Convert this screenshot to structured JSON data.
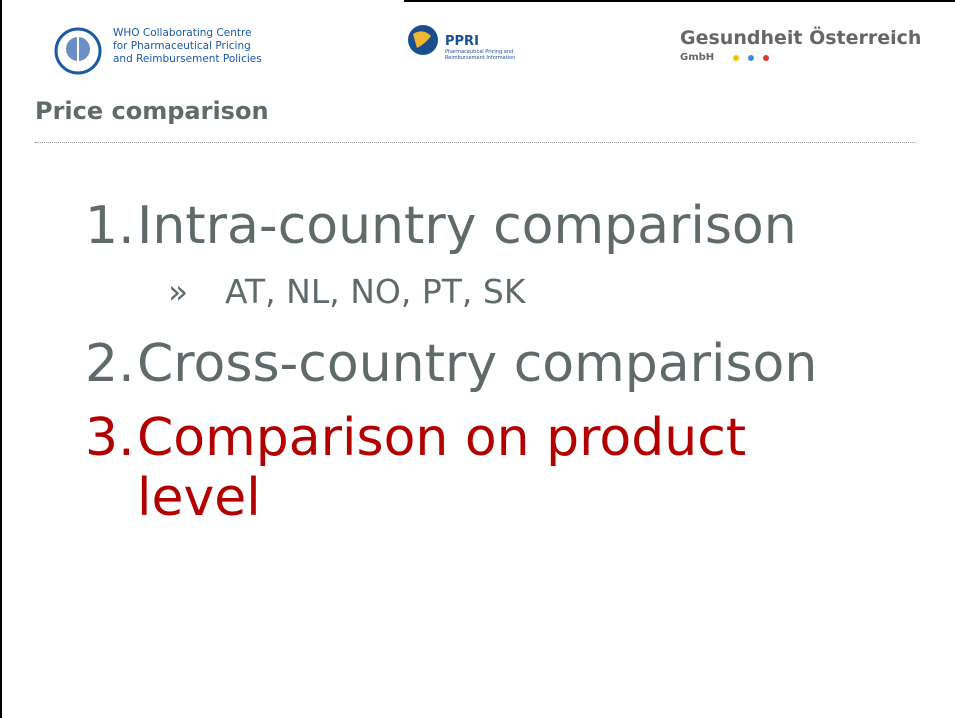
{
  "header": {
    "who": [
      "WHO Collaborating Centre",
      "for Pharmaceutical Pricing",
      "and Reimbursement Policies"
    ],
    "ppri": {
      "name": "PPRI",
      "tagline": [
        "Pharmaceutical Pricing and",
        "Reimbursement Information"
      ]
    },
    "goeg": {
      "name": "Gesundheit Österreich",
      "suffix": "GmbH"
    }
  },
  "title": "Price comparison",
  "items": [
    {
      "number": "1.",
      "text": "Intra-country comparison",
      "sub": {
        "bullet": "»",
        "text": "AT, NL, NO, PT, SK"
      }
    },
    {
      "number": "2.",
      "text": "Cross-country comparison"
    },
    {
      "number": "3.",
      "text": "Comparison on product level"
    }
  ]
}
